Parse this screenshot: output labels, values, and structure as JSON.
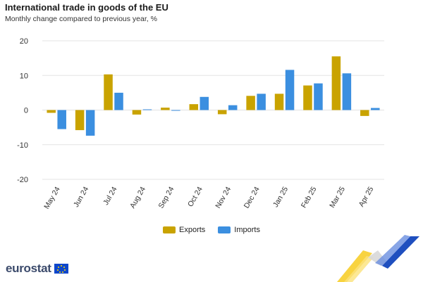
{
  "title": "International trade in goods of the EU",
  "subtitle": "Monthly change compared to previous year, %",
  "brand": {
    "name": "eurostat",
    "logo": "eu-flag-icon"
  },
  "chart_data": {
    "type": "bar",
    "categories": [
      "May 24",
      "Jun 24",
      "Jul 24",
      "Aug 24",
      "Sep 24",
      "Oct 24",
      "Nov 24",
      "Dec 24",
      "Jan 25",
      "Feb 25",
      "Mar 25",
      "Apr 25"
    ],
    "series": [
      {
        "name": "Exports",
        "color": "#c9a300",
        "values": [
          -0.8,
          -5.8,
          10.3,
          -1.3,
          0.7,
          1.7,
          -1.2,
          4.1,
          4.7,
          7.1,
          15.5,
          -1.7
        ]
      },
      {
        "name": "Imports",
        "color": "#3b8fe0",
        "values": [
          -5.5,
          -7.4,
          5.0,
          0.2,
          -0.2,
          3.8,
          1.4,
          4.7,
          11.6,
          7.7,
          10.6,
          0.6
        ]
      }
    ],
    "yticks": [
      20,
      10,
      0,
      -10,
      -20
    ],
    "ylim": [
      -20,
      20
    ],
    "grid": true,
    "legend_position": "bottom"
  }
}
